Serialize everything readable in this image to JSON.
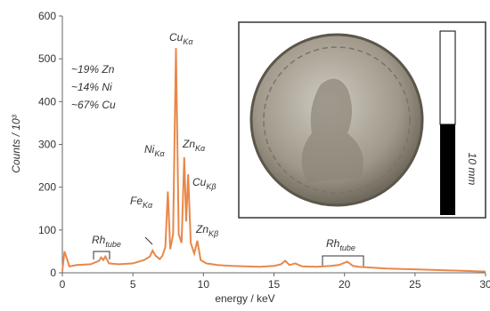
{
  "chart_data": {
    "type": "line",
    "x_label": "energy / keV",
    "y_label": "Counts  /  10³",
    "x": [
      0,
      0.15,
      0.5,
      1,
      2,
      2.6,
      2.75,
      2.9,
      3.05,
      3.3,
      4,
      5,
      5.8,
      6.2,
      6.4,
      6.6,
      6.9,
      7.1,
      7.3,
      7.48,
      7.65,
      7.85,
      8.05,
      8.25,
      8.45,
      8.64,
      8.78,
      8.92,
      9.1,
      9.35,
      9.57,
      9.8,
      10.2,
      11,
      12,
      13,
      14,
      15,
      15.5,
      15.8,
      16.1,
      16.5,
      17,
      18,
      19,
      19.6,
      20.2,
      20.6,
      21,
      22,
      23,
      25,
      27,
      30
    ],
    "values": [
      5,
      50,
      15,
      18,
      20,
      28,
      36,
      30,
      38,
      22,
      20,
      22,
      30,
      38,
      52,
      40,
      32,
      40,
      60,
      190,
      55,
      90,
      525,
      90,
      70,
      270,
      120,
      230,
      70,
      45,
      75,
      30,
      22,
      18,
      16,
      15,
      14,
      16,
      20,
      28,
      18,
      22,
      15,
      14,
      16,
      18,
      26,
      16,
      14,
      12,
      10,
      8,
      6,
      3
    ],
    "color": "#e8884a",
    "xlim": [
      0,
      30
    ],
    "ylim": [
      0,
      600
    ],
    "xticks": [
      0,
      5,
      10,
      15,
      20,
      25,
      30
    ],
    "yticks": [
      0,
      100,
      200,
      300,
      400,
      500,
      600
    ],
    "grid": false,
    "annotations": [
      {
        "label": "Cu",
        "sub": "Kα"
      },
      {
        "label": "Ni",
        "sub": "Kα"
      },
      {
        "label": "Zn",
        "sub": "Kα"
      },
      {
        "label": "Cu",
        "sub": "Kβ"
      },
      {
        "label": "Fe",
        "sub": "Kα"
      },
      {
        "label": "Zn",
        "sub": "Kβ"
      },
      {
        "label": "Rh",
        "sub": "tube"
      },
      {
        "label": "Rh",
        "sub": "tube"
      }
    ],
    "notes": [
      "~19% Zn",
      "~14% Ni",
      "~67% Cu"
    ],
    "scale_bar_label": "10 mm"
  }
}
